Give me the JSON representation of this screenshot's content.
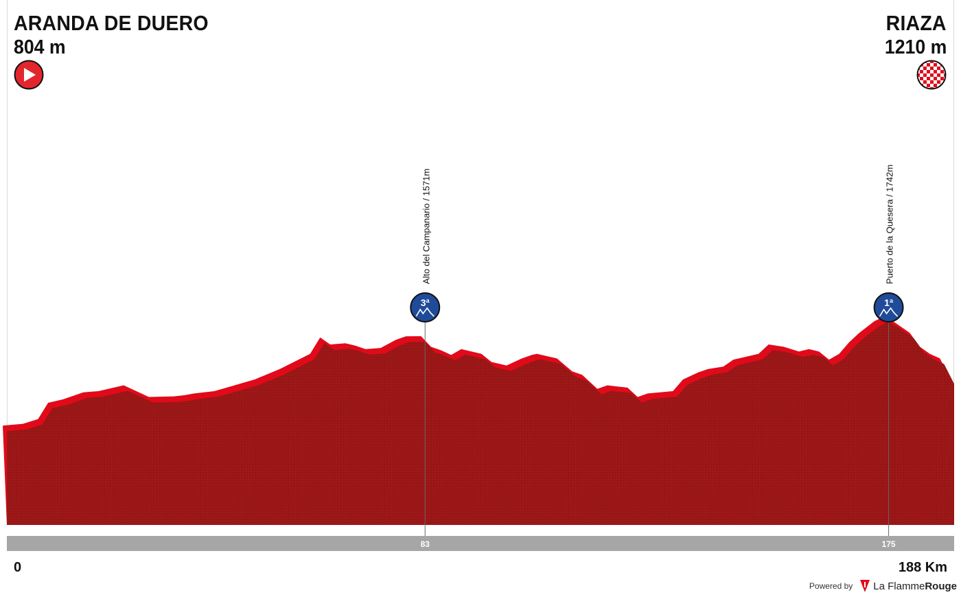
{
  "start": {
    "name": "ARANDA DE DUERO",
    "altitude": "804 m",
    "icon": "start-play-icon",
    "color": "#e3262d"
  },
  "finish": {
    "name": "RIAZA",
    "altitude": "1210 m",
    "icon": "finish-checkered-flag-icon",
    "color": "#e3262d"
  },
  "axis": {
    "start_label": "0",
    "end_label": "188 Km"
  },
  "footer": {
    "powered_by": "Powered by",
    "brand_first": "La Flamme",
    "brand_second": "Rouge"
  },
  "colors": {
    "profile_fill": "#9b1717",
    "profile_edge": "#e10a1a",
    "distance_bar": "#a6a6a6",
    "climb_badge": "#1f4b99"
  },
  "chart_data": {
    "type": "area",
    "title": "",
    "xlabel": "",
    "ylabel": "",
    "xlim": [
      0,
      188
    ],
    "ylim": [
      0,
      4500
    ],
    "distance_km": [
      0,
      4,
      7,
      9,
      12,
      16,
      19,
      24,
      29,
      34,
      36,
      38,
      42,
      46,
      50,
      55,
      61,
      63,
      65,
      68,
      70,
      72,
      75,
      78,
      80,
      83,
      85,
      87,
      89,
      91,
      95,
      97,
      100,
      103,
      105,
      106,
      108,
      110,
      113,
      115,
      118,
      120,
      122,
      124,
      126,
      128,
      133,
      135,
      138,
      140,
      143,
      145,
      150,
      152,
      155,
      158,
      160,
      162,
      164,
      166,
      168,
      170,
      173,
      175,
      177,
      180,
      182,
      184,
      186,
      188
    ],
    "elevation_m": [
      804,
      820,
      860,
      1000,
      1030,
      1090,
      1100,
      1150,
      1050,
      1055,
      1065,
      1080,
      1100,
      1150,
      1200,
      1290,
      1420,
      1560,
      1500,
      1510,
      1490,
      1460,
      1470,
      1540,
      1570,
      1571,
      1480,
      1450,
      1410,
      1460,
      1420,
      1350,
      1320,
      1380,
      1410,
      1420,
      1400,
      1380,
      1270,
      1240,
      1120,
      1150,
      1140,
      1130,
      1050,
      1080,
      1100,
      1200,
      1260,
      1290,
      1310,
      1370,
      1420,
      1500,
      1480,
      1440,
      1460,
      1440,
      1370,
      1420,
      1520,
      1600,
      1700,
      1742,
      1690,
      1600,
      1480,
      1420,
      1380,
      1210
    ],
    "highlights": [
      {
        "km": 83,
        "label": "83"
      },
      {
        "km": 175,
        "label": "175"
      }
    ],
    "climbs": [
      {
        "name": "Alto del Campanario / 1571m",
        "km": 83,
        "category": "3ª"
      },
      {
        "name": "Puerto de la Quesera / 1742m",
        "km": 175,
        "category": "1ª"
      }
    ]
  }
}
